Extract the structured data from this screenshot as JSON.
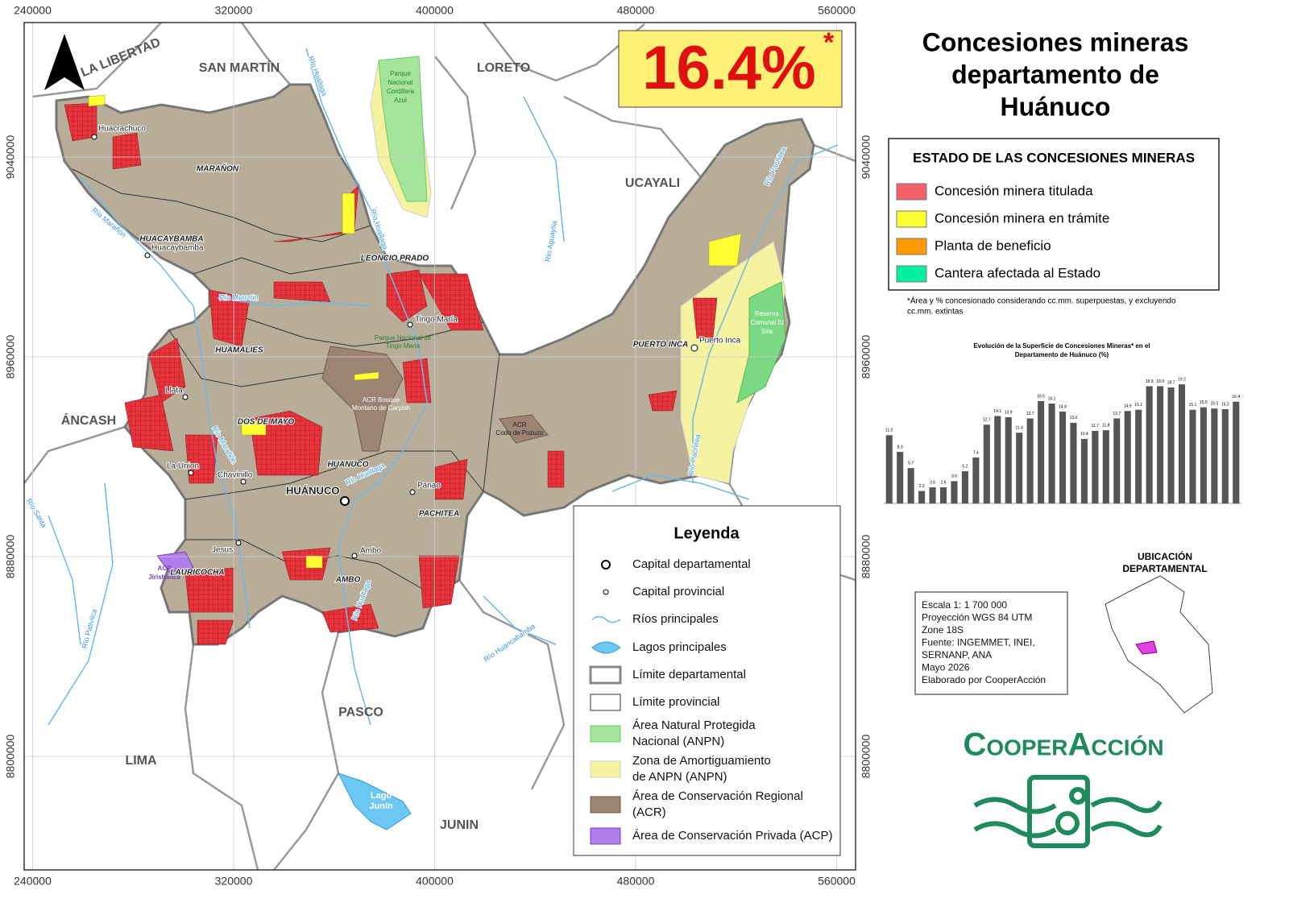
{
  "title": [
    "Concesiones mineras",
    "departamento de",
    "Huánuco"
  ],
  "headline": {
    "value": "16.4%",
    "mark": "*"
  },
  "map": {
    "xticks": [
      240000,
      320000,
      400000,
      480000,
      560000
    ],
    "yticks": [
      9040000,
      8960000,
      8880000,
      8800000
    ],
    "regions": [
      "LA LIBERTAD",
      "SAN MARTÍN",
      "LORETO",
      "UCAYALI",
      "ÁNCASH",
      "PASCO",
      "LIMA",
      "JUNIN"
    ],
    "provinces": [
      "MARAÑON",
      "HUACAYBAMBA",
      "LEONCIO PRADO",
      "HUAMALIES",
      "DOS DE MAYO",
      "HUANUCO",
      "PACHITEA",
      "AMBO",
      "LAURICOCHA",
      "PUERTO INCA"
    ],
    "places": [
      "Huacrachuco",
      "Huacaybamba",
      "Tingo María",
      "Llata",
      "La Union",
      "Chavinillo",
      "HUÁNUCO",
      "Panao",
      "Jesus",
      "Ambo",
      "Puerto Inca"
    ],
    "rivers": [
      "Río Huallaga",
      "Río Marañón",
      "Río Monzón",
      "Río Aguaytía",
      "Río Pachitea",
      "Río Santa",
      "Río Pativilca",
      "Río Huancabamba"
    ],
    "areas": [
      [
        "Parque",
        "Nacional",
        "Cordillera",
        "Azul"
      ],
      [
        "Parque Nacional de",
        "Tingo María"
      ],
      [
        "ACR Bosque",
        "Montano de Carpish"
      ],
      [
        "ACR",
        "Codo de Pozuzo"
      ],
      [
        "Reserva",
        "Comunal El",
        "Sira"
      ],
      [
        "ACP",
        "Jirishanca"
      ],
      [
        "Lago",
        "Junín"
      ]
    ]
  },
  "status_legend": {
    "title": "ESTADO DE LAS CONCESIONES MINERAS",
    "items": [
      {
        "label": "Concesión minera titulada",
        "color": "#f4606a"
      },
      {
        "label": "Concesión minera en trámite",
        "color": "#ffff33"
      },
      {
        "label": "Planta de beneficio",
        "color": "#ff9900"
      },
      {
        "label": "Cantera afectada al Estado",
        "color": "#00f0a0"
      }
    ]
  },
  "footnote": [
    "*Área y % concesionado considerando cc.mm. superpuestas, y excluyendo",
    "cc.mm. extintas"
  ],
  "chart_data": {
    "type": "bar",
    "title": [
      "Evolución de la Superficie de Concesiones Mineras* en el",
      "Departamento de Huánuco (%)"
    ],
    "categories": [
      null,
      null,
      null,
      null,
      null,
      null,
      null,
      null,
      null,
      null,
      null,
      null,
      null,
      null,
      null,
      null,
      null,
      null,
      null,
      null,
      null,
      null,
      null,
      null,
      null,
      null,
      null,
      null,
      null,
      null,
      null,
      null,
      null
    ],
    "values": [
      11.0,
      8.3,
      5.7,
      2.0,
      2.6,
      2.6,
      3.6,
      5.2,
      7.4,
      12.7,
      14.1,
      13.9,
      11.4,
      13.7,
      16.5,
      16.1,
      14.8,
      13.0,
      10.4,
      11.7,
      11.8,
      13.7,
      14.9,
      15.1,
      18.9,
      18.9,
      18.7,
      19.2,
      15.1,
      15.5,
      15.3,
      15.2,
      16.4
    ],
    "value_labels": [
      "11.0",
      "8.3",
      "5.7",
      "2.0",
      "2.6",
      "2.6",
      "3.6",
      "5.2",
      "7.4",
      "12.7",
      "14.1",
      "13.9",
      "11.4",
      "13.7",
      "16.5",
      "16.1",
      "14.8",
      "13.0",
      "10.4",
      "11.7",
      "11.8",
      "13.7",
      "14.9",
      "15.1",
      "18.9",
      "18.9",
      "18.7",
      "19.2",
      "15.1",
      "15.5",
      "15.3",
      "15.2",
      "16.4"
    ],
    "color": "#555555",
    "ylim": [
      0,
      20
    ]
  },
  "legend": {
    "title": "Leyenda",
    "items": [
      [
        "Capital departamental"
      ],
      [
        "Capital provincial"
      ],
      [
        "Ríos principales"
      ],
      [
        "Lagos principales"
      ],
      [
        "Límite departamental"
      ],
      [
        "Límite provincial"
      ],
      [
        "Área Natural Protegida",
        "Nacional (ANPN)"
      ],
      [
        "Zona de Amortiguamiento",
        "de ANPN (ANPN)"
      ],
      [
        "Área de Conservación Regional",
        "(ACR)"
      ],
      [
        "Área de Conservación Privada (ACP)"
      ]
    ]
  },
  "scale_box": [
    "Escala 1: 1 700 000",
    "Proyección WGS 84 UTM",
    "Zone 18S",
    "Fuente: INGEMMET, INEI,",
    "SERNANP, ANA",
    "Mayo 2026",
    "Elaborado por CooperAcción"
  ],
  "location": [
    "UBICACIÓN",
    "DEPARTAMENTAL"
  ],
  "logo": "CooperAcción"
}
